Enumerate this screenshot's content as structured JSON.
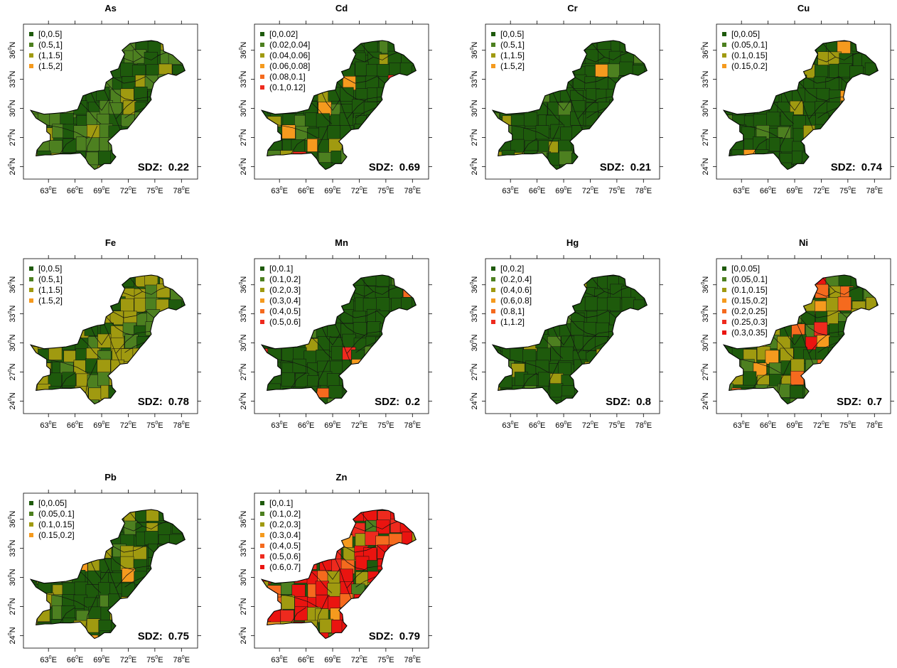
{
  "colors": {
    "c1": "#1e5a0c",
    "c2": "#4d8020",
    "c3": "#a09a10",
    "c4": "#f59a1e",
    "c5": "#f56a1e",
    "c6": "#ee2a1e",
    "c7": "#ea1410"
  },
  "axes": {
    "lon_ticks": [
      "63",
      "66",
      "69",
      "72",
      "75",
      "78"
    ],
    "lat_ticks": [
      "24",
      "27",
      "30",
      "33",
      "36"
    ],
    "lon_unit": "E",
    "lat_unit": "N",
    "degree_symbol": "0"
  },
  "sdz_label": "SDZ:",
  "panels": [
    {
      "title": "As",
      "sdz": "0.22",
      "legend": [
        "[0,0.5]",
        "(0.5,1]",
        "(1,1.5]",
        "(1.5,2]"
      ],
      "fills": [
        0.45,
        0.45,
        0.1
      ]
    },
    {
      "title": "Cd",
      "sdz": "0.69",
      "legend": [
        "[0,0.02]",
        "(0.02,0.04]",
        "(0.04,0.06]",
        "(0.06,0.08]",
        "(0.08,0.1]",
        "(0.1,0.12]"
      ],
      "fills": [
        0.8,
        0.1,
        0.05,
        0.03,
        0.015,
        0.005
      ]
    },
    {
      "title": "Cr",
      "sdz": "0.21",
      "legend": [
        "[0,0.5]",
        "(0.5,1]",
        "(1,1.5]",
        "(1.5,2]"
      ],
      "fills": [
        0.8,
        0.15,
        0.04,
        0.01
      ]
    },
    {
      "title": "Cu",
      "sdz": "0.74",
      "legend": [
        "[0,0.05]",
        "(0.05,0.1]",
        "(0.1,0.15]",
        "(0.15,0.2]"
      ],
      "fills": [
        0.8,
        0.1,
        0.08,
        0.02
      ]
    },
    {
      "title": "Fe",
      "sdz": "0.78",
      "legend": [
        "[0,0.5]",
        "(0.5,1]",
        "(1,1.5]",
        "(1.5,2]"
      ],
      "fills": [
        0.25,
        0.25,
        0.5
      ]
    },
    {
      "title": "Mn",
      "sdz": "0.2",
      "legend": [
        "[0,0.1]",
        "(0.1,0.2]",
        "(0.2,0.3]",
        "(0.3,0.4]",
        "(0.4,0.5]",
        "(0.5,0.6]"
      ],
      "fills": [
        0.9,
        0.04,
        0.02,
        0.02,
        0.01,
        0.01
      ]
    },
    {
      "title": "Hg",
      "sdz": "0.8",
      "legend": [
        "[0,0.2]",
        "(0.2,0.4]",
        "(0.4,0.6]",
        "(0.6,0.8]",
        "(0.8,1]",
        "(1,1.2]"
      ],
      "fills": [
        0.85,
        0.07,
        0.08
      ]
    },
    {
      "title": "Ni",
      "sdz": "0.7",
      "legend": [
        "[0,0.05]",
        "(0.05,0.1]",
        "(0.1,0.15]",
        "(0.15,0.2]",
        "(0.2,0.25]",
        "(0.25,0.3]",
        "(0.3,0.35]"
      ],
      "fills": [
        0.3,
        0.25,
        0.28,
        0.05,
        0.08,
        0.02,
        0.02
      ]
    },
    {
      "title": "Pb",
      "sdz": "0.75",
      "legend": [
        "[0,0.05]",
        "(0.05,0.1]",
        "(0.1,0.15]",
        "(0.15,0.2]"
      ],
      "fills": [
        0.6,
        0.15,
        0.2,
        0.05
      ]
    },
    {
      "title": "Zn",
      "sdz": "0.79",
      "legend": [
        "[0,0.1]",
        "(0.1,0.2]",
        "(0.2,0.3]",
        "(0.3,0.4]",
        "(0.4,0.5]",
        "(0.5,0.6]",
        "(0.6,0.7]"
      ],
      "fills": [
        0.04,
        0.06,
        0.1,
        0.08,
        0.07,
        0.1,
        0.55
      ]
    }
  ]
}
